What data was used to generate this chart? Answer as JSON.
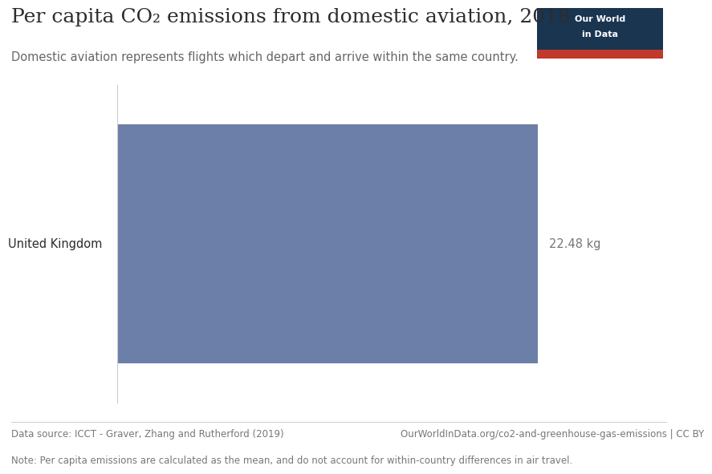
{
  "title": "Per capita CO₂ emissions from domestic aviation, 2018",
  "subtitle": "Domestic aviation represents flights which depart and arrive within the same country.",
  "category": "United Kingdom",
  "value": 22.48,
  "value_label": "22.48 kg",
  "bar_color": "#6b7fa8",
  "background_color": "#ffffff",
  "text_color": "#2c2c2c",
  "subtitle_color": "#666666",
  "footer_color": "#777777",
  "data_source": "Data source: ICCT - Graver, Zhang and Rutherford (2019)",
  "url": "OurWorldInData.org/co2-and-greenhouse-gas-emissions | CC BY",
  "note": "Note: Per capita emissions are calculated as the mean, and do not account for within-country differences in air travel.",
  "owid_box_color": "#1a3550",
  "owid_red": "#c0392b",
  "title_fontsize": 18,
  "subtitle_fontsize": 10.5,
  "footer_fontsize": 8.5,
  "xlim": [
    0,
    25
  ]
}
